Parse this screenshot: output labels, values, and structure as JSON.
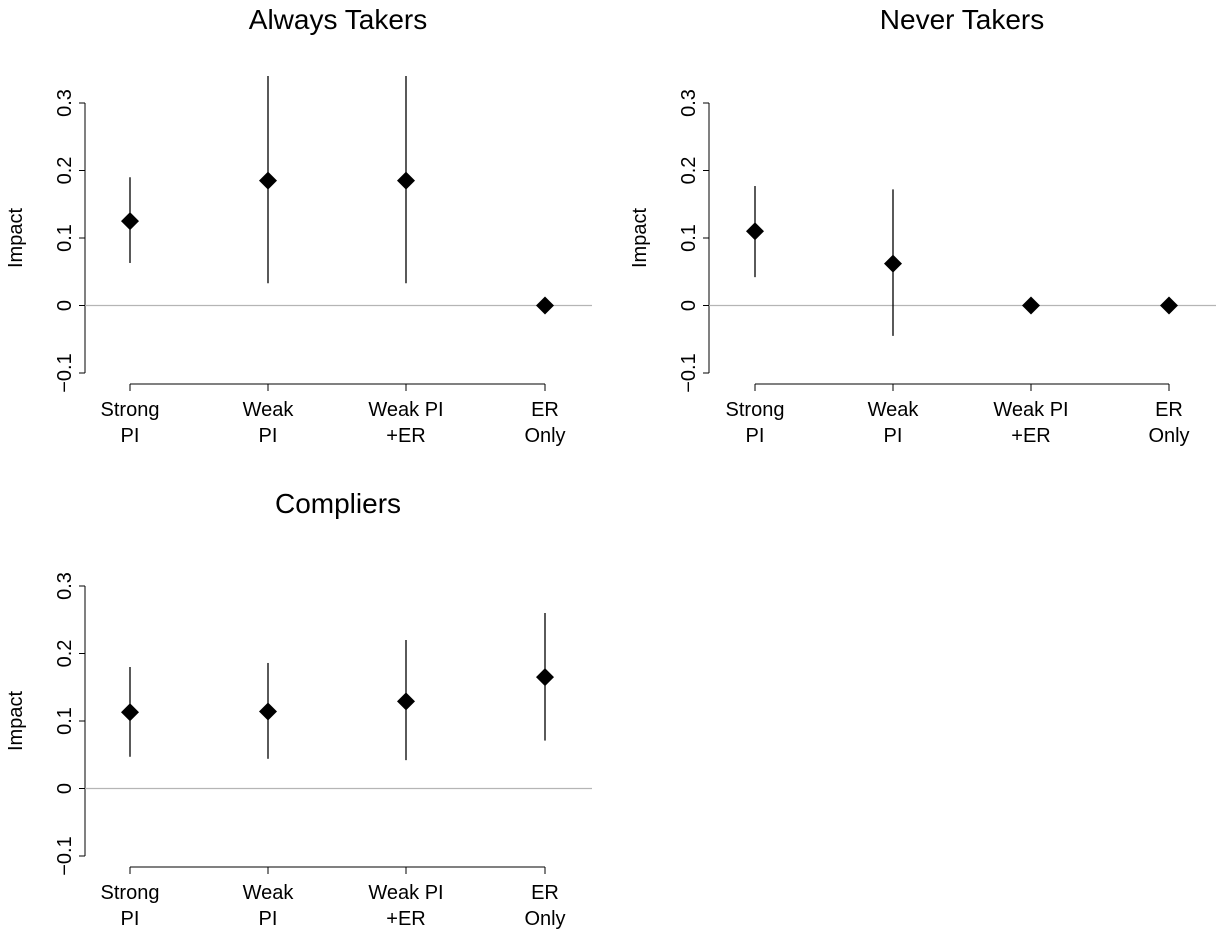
{
  "chart_data": [
    {
      "type": "scatter",
      "title": "Always Takers",
      "ylabel": "Impact",
      "xlabel": "",
      "ylim": [
        -0.1,
        0.3
      ],
      "yticks": [
        "-0.1",
        "0",
        "0.1",
        "0.2",
        "0.3"
      ],
      "categories": [
        [
          "Strong",
          "PI"
        ],
        [
          "Weak",
          "PI"
        ],
        [
          "Weak PI",
          "+ER"
        ],
        [
          "ER",
          "Only"
        ]
      ],
      "series": [
        {
          "estimate": [
            0.125,
            0.185,
            0.185,
            0.0
          ],
          "lower": [
            0.063,
            0.033,
            0.033,
            0.0
          ],
          "upper": [
            0.19,
            0.34,
            0.34,
            0.0
          ]
        }
      ],
      "reference_line": 0,
      "grid": false
    },
    {
      "type": "scatter",
      "title": "Never Takers",
      "ylabel": "Impact",
      "xlabel": "",
      "ylim": [
        -0.1,
        0.3
      ],
      "yticks": [
        "-0.1",
        "0",
        "0.1",
        "0.2",
        "0.3"
      ],
      "categories": [
        [
          "Strong",
          "PI"
        ],
        [
          "Weak",
          "PI"
        ],
        [
          "Weak PI",
          "+ER"
        ],
        [
          "ER",
          "Only"
        ]
      ],
      "series": [
        {
          "estimate": [
            0.11,
            0.062,
            0.0,
            0.0
          ],
          "lower": [
            0.042,
            -0.045,
            0.0,
            0.0
          ],
          "upper": [
            0.177,
            0.172,
            0.0,
            0.0
          ]
        }
      ],
      "reference_line": 0,
      "grid": false
    },
    {
      "type": "scatter",
      "title": "Compliers",
      "ylabel": "Impact",
      "xlabel": "",
      "ylim": [
        -0.1,
        0.3
      ],
      "yticks": [
        "-0.1",
        "0",
        "0.1",
        "0.2",
        "0.3"
      ],
      "categories": [
        [
          "Strong",
          "PI"
        ],
        [
          "Weak",
          "PI"
        ],
        [
          "Weak PI",
          "+ER"
        ],
        [
          "ER",
          "Only"
        ]
      ],
      "series": [
        {
          "estimate": [
            0.113,
            0.114,
            0.129,
            0.165
          ],
          "lower": [
            0.047,
            0.044,
            0.042,
            0.071
          ],
          "upper": [
            0.18,
            0.186,
            0.22,
            0.26
          ]
        }
      ],
      "reference_line": 0,
      "grid": false
    }
  ]
}
